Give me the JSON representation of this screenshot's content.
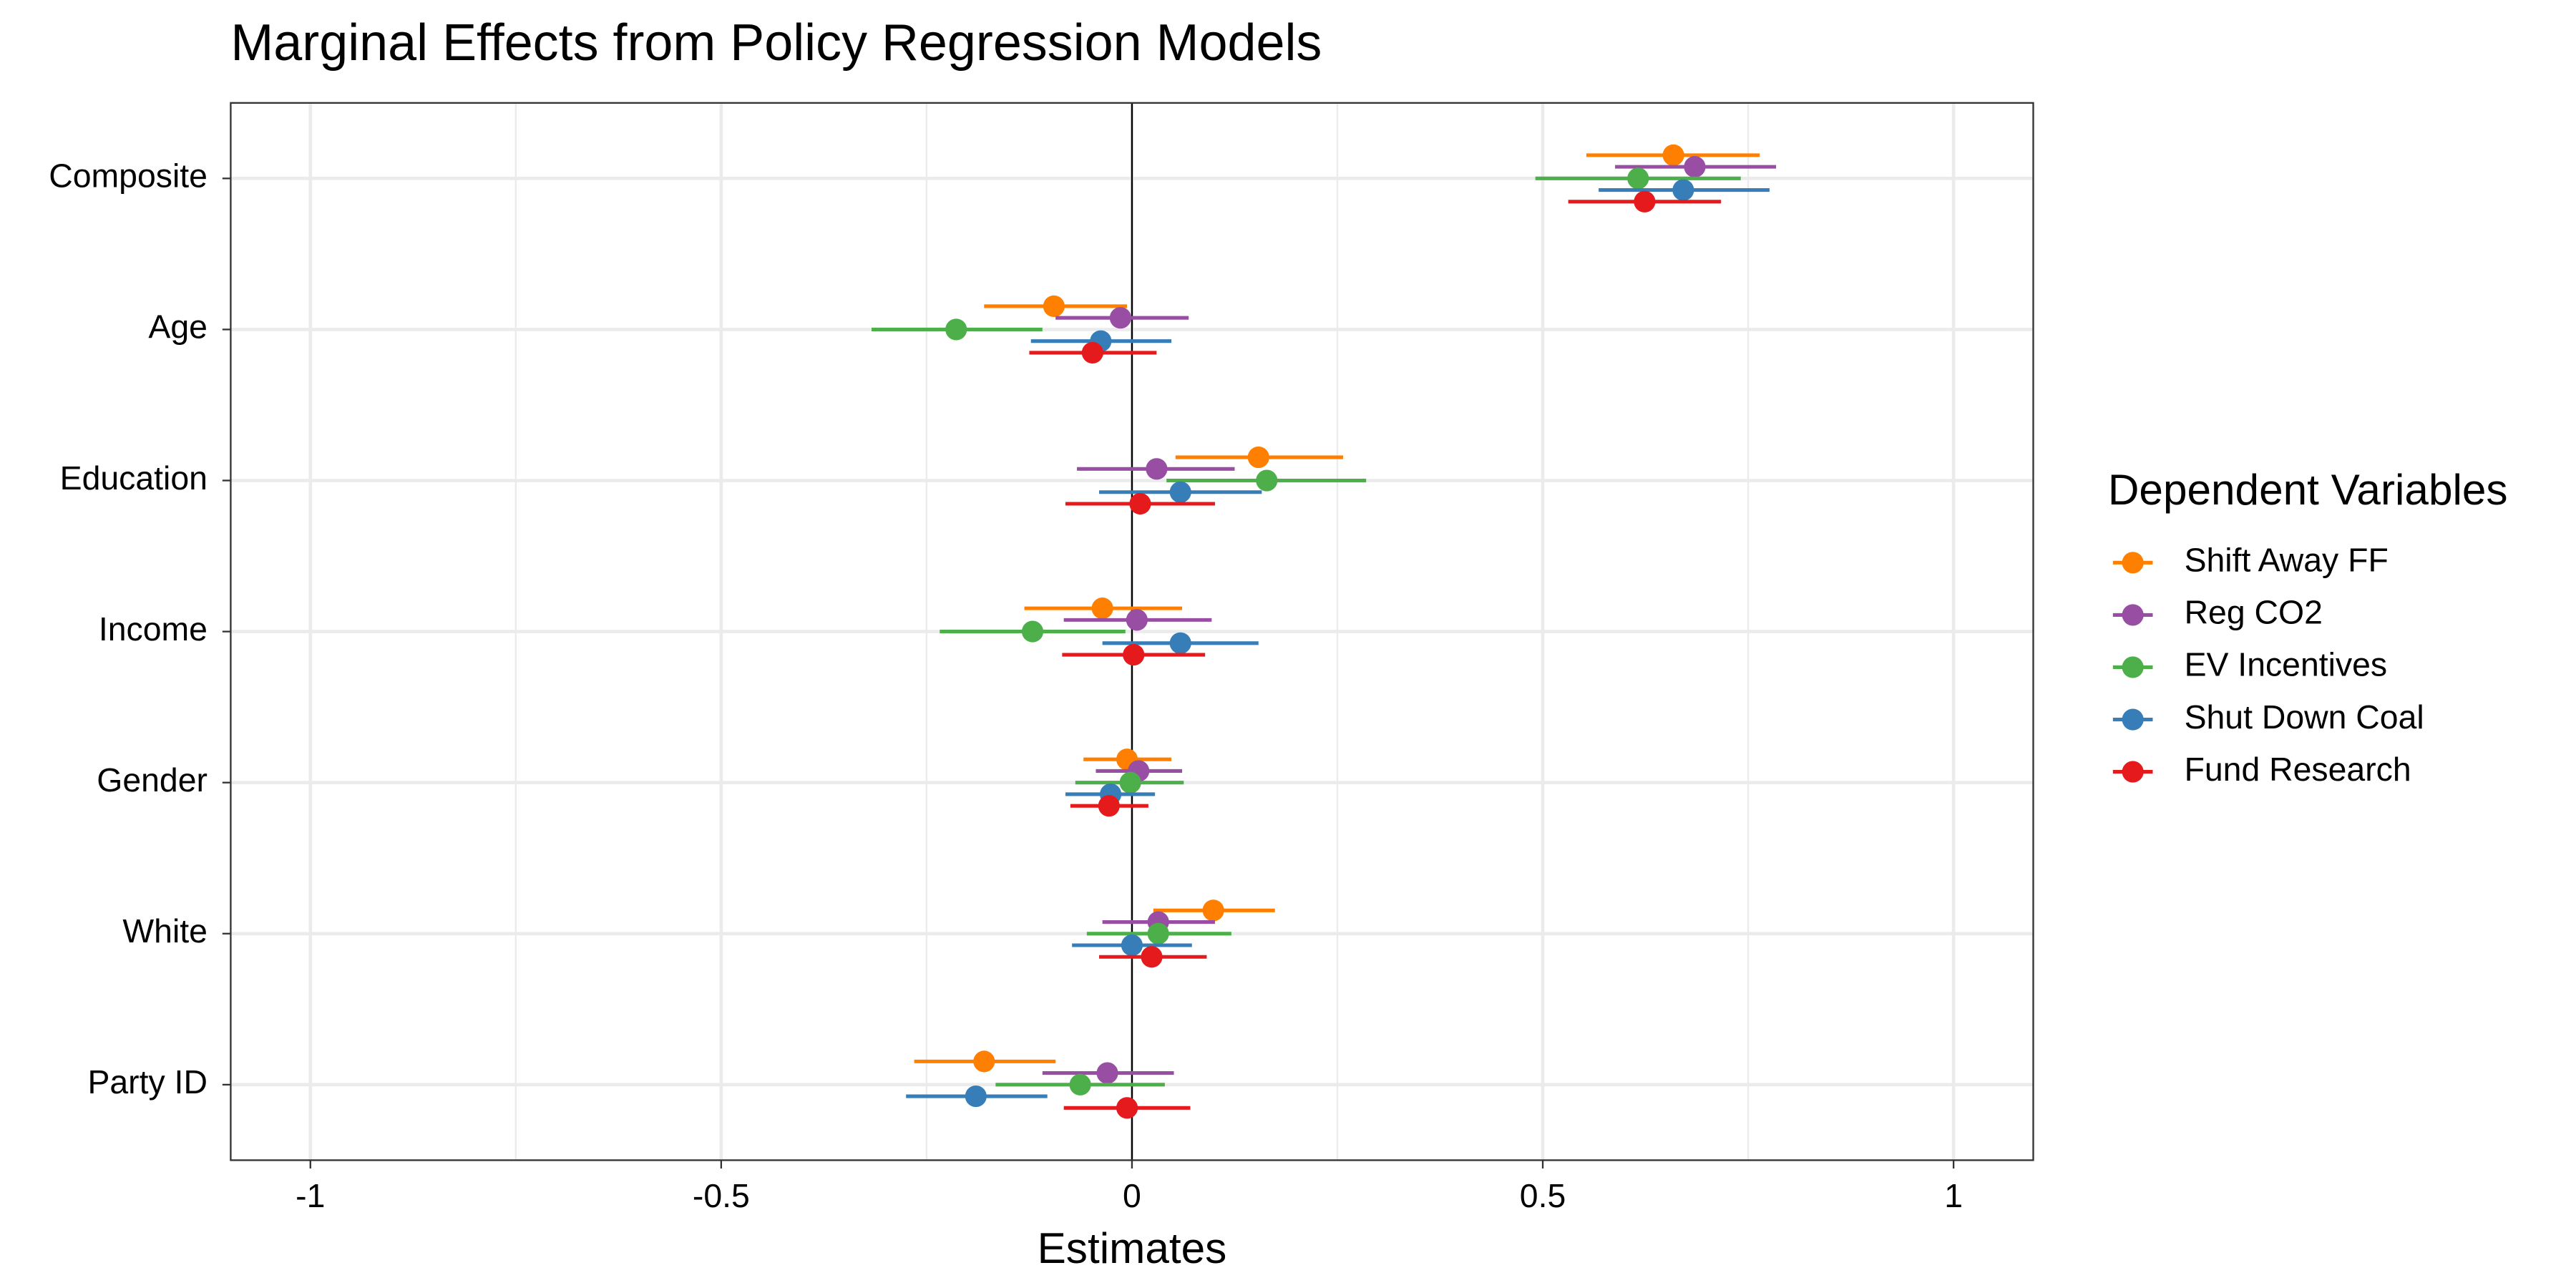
{
  "chart_data": {
    "type": "dotwhisker",
    "title": "Marginal Effects from Policy Regression Models",
    "x_label": "Estimates",
    "legend_title": "Dependent Variables",
    "legend_position": "right",
    "categories": [
      "Composite",
      "Age",
      "Education",
      "Income",
      "Gender",
      "White",
      "Party ID"
    ],
    "series": [
      {
        "name": "Shift Away FF",
        "color": "#ff7f00",
        "values": [
          0.659,
          -0.095,
          0.154,
          -0.036,
          -0.006,
          0.099,
          -0.18
        ],
        "ci_low": [
          0.553,
          -0.18,
          0.053,
          -0.131,
          -0.059,
          0.026,
          -0.265
        ],
        "ci_high": [
          0.764,
          -0.006,
          0.257,
          0.061,
          0.048,
          0.174,
          -0.093
        ]
      },
      {
        "name": "Reg CO2",
        "color": "#984ea3",
        "values": [
          0.685,
          -0.014,
          0.03,
          0.006,
          0.008,
          0.032,
          -0.03
        ],
        "ci_low": [
          0.588,
          -0.093,
          -0.067,
          -0.083,
          -0.044,
          -0.036,
          -0.109
        ],
        "ci_high": [
          0.784,
          0.069,
          0.125,
          0.097,
          0.061,
          0.101,
          0.051
        ]
      },
      {
        "name": "EV Incentives",
        "color": "#4daf4a",
        "values": [
          0.616,
          -0.214,
          0.164,
          -0.121,
          -0.002,
          0.032,
          -0.063
        ],
        "ci_low": [
          0.491,
          -0.317,
          0.042,
          -0.234,
          -0.069,
          -0.055,
          -0.166
        ],
        "ci_high": [
          0.741,
          -0.109,
          0.285,
          -0.008,
          0.063,
          0.121,
          0.04
        ]
      },
      {
        "name": "Shut Down Coal",
        "color": "#377eb8",
        "values": [
          0.671,
          -0.038,
          0.059,
          0.059,
          -0.026,
          0.0,
          -0.19
        ],
        "ci_low": [
          0.568,
          -0.123,
          -0.04,
          -0.036,
          -0.081,
          -0.073,
          -0.275
        ],
        "ci_high": [
          0.776,
          0.048,
          0.158,
          0.154,
          0.028,
          0.073,
          -0.103
        ]
      },
      {
        "name": "Fund Research",
        "color": "#e41a1c",
        "values": [
          0.624,
          -0.048,
          0.01,
          0.002,
          -0.028,
          0.024,
          -0.006
        ],
        "ci_low": [
          0.531,
          -0.125,
          -0.081,
          -0.085,
          -0.075,
          -0.04,
          -0.083
        ],
        "ci_high": [
          0.717,
          0.03,
          0.101,
          0.089,
          0.02,
          0.091,
          0.071
        ]
      }
    ],
    "xlim": [
      -1.097,
      1.097
    ],
    "xticks": [
      -1,
      -0.5,
      0,
      0.5,
      1
    ],
    "xminor": [
      -0.75,
      -0.25,
      0.25,
      0.75
    ],
    "reference_line": 0,
    "grid": true
  }
}
